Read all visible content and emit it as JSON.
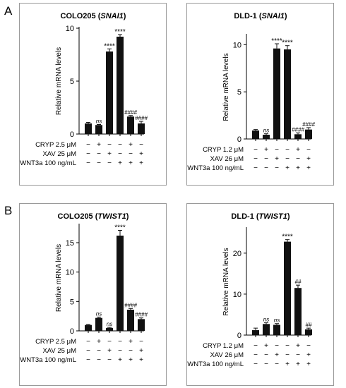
{
  "panel_letters": [
    "A",
    "B"
  ],
  "chart_data": [
    {
      "type": "bar",
      "title_main": "COLO205",
      "title_gene": "SNAI1",
      "ylabel": "Relative mRNA levels",
      "ylim": [
        0,
        10
      ],
      "yticks": [
        "0",
        "5",
        "10"
      ],
      "treatments": [
        {
          "label": "CRYP 2.5 μM",
          "signs": [
            "−",
            "+",
            "−",
            "−",
            "+",
            "−"
          ]
        },
        {
          "label": "XAV 25 μM",
          "signs": [
            "−",
            "−",
            "+",
            "−",
            "−",
            "+"
          ]
        },
        {
          "label": "WNT3a 100 ng/mL",
          "signs": [
            "−",
            "−",
            "−",
            "+",
            "+",
            "+"
          ]
        }
      ],
      "values": [
        1.0,
        0.85,
        7.8,
        9.2,
        1.65,
        1.0
      ],
      "errors": [
        0.1,
        0.05,
        0.25,
        0.2,
        0.1,
        0.2
      ],
      "annotations": [
        "",
        "ns",
        "****",
        "****",
        "####",
        "####"
      ]
    },
    {
      "type": "bar",
      "title_main": "DLD-1",
      "title_gene": "SNAI1",
      "ylabel": "Relative mRNA levels",
      "ylim": [
        0,
        11
      ],
      "yticks": [
        "0",
        "5",
        "10"
      ],
      "treatments": [
        {
          "label": "CRYP 1.2 μM",
          "signs": [
            "−",
            "+",
            "−",
            "−",
            "+",
            "−"
          ]
        },
        {
          "label": "XAV 26 μM",
          "signs": [
            "−",
            "−",
            "+",
            "−",
            "−",
            "+"
          ]
        },
        {
          "label": "WNT3a 100 ng/mL",
          "signs": [
            "−",
            "−",
            "−",
            "+",
            "+",
            "+"
          ]
        }
      ],
      "values": [
        0.9,
        0.45,
        9.6,
        9.5,
        0.5,
        1.0
      ],
      "errors": [
        0.1,
        0.1,
        0.5,
        0.4,
        0.15,
        0.2
      ],
      "annotations": [
        "",
        "ns",
        "****",
        "****",
        "####",
        "####"
      ]
    },
    {
      "type": "bar",
      "title_main": "COLO205",
      "title_gene": "TWIST1",
      "ylabel": "Relative mRNA levels",
      "ylim": [
        0,
        18
      ],
      "yticks": [
        "0",
        "5",
        "10",
        "15"
      ],
      "treatments": [
        {
          "label": "CRYP 2.5 μM",
          "signs": [
            "−",
            "+",
            "−",
            "−",
            "+",
            "−"
          ]
        },
        {
          "label": "XAV 25 μM",
          "signs": [
            "−",
            "−",
            "+",
            "−",
            "−",
            "+"
          ]
        },
        {
          "label": "WNT3a 100 ng/mL",
          "signs": [
            "−",
            "−",
            "−",
            "+",
            "+",
            "+"
          ]
        }
      ],
      "values": [
        1.0,
        2.2,
        0.5,
        16.2,
        3.6,
        2.0
      ],
      "errors": [
        0.1,
        0.15,
        0.1,
        0.9,
        0.2,
        0.2
      ],
      "annotations": [
        "",
        "ns",
        "ns",
        "****",
        "####",
        "####"
      ]
    },
    {
      "type": "bar",
      "title_main": "DLD-1",
      "title_gene": "TWIST1",
      "ylabel": "Relative mRNA levels",
      "ylim": [
        0,
        26
      ],
      "yticks": [
        "0",
        "10",
        "20"
      ],
      "treatments": [
        {
          "label": "CRYP 1.2 μM",
          "signs": [
            "−",
            "+",
            "−",
            "−",
            "+",
            "−"
          ]
        },
        {
          "label": "XAV 26 μM",
          "signs": [
            "−",
            "−",
            "+",
            "−",
            "−",
            "+"
          ]
        },
        {
          "label": "WNT3a 100 ng/mL",
          "signs": [
            "−",
            "−",
            "−",
            "+",
            "+",
            "+"
          ]
        }
      ],
      "values": [
        1.2,
        2.7,
        2.5,
        22.8,
        11.5,
        1.4
      ],
      "errors": [
        0.5,
        0.3,
        0.3,
        0.5,
        0.7,
        0.3
      ],
      "annotations": [
        "",
        "ns",
        "ns",
        "****",
        "##",
        "##"
      ]
    }
  ]
}
